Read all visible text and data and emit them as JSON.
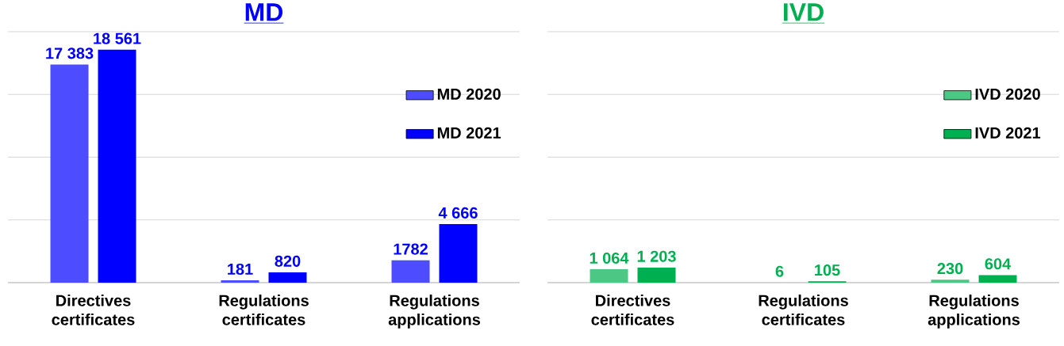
{
  "chart_data": [
    {
      "type": "bar",
      "title": "MD",
      "categories": [
        "Directives certificates",
        "Regulations certificates",
        "Regulations applications"
      ],
      "series": [
        {
          "name": "MD 2020",
          "color": "#4d4dff",
          "values": [
            17383,
            181,
            1782
          ],
          "value_labels": [
            "17 383",
            "181",
            "1782"
          ]
        },
        {
          "name": "MD 2021",
          "color": "#0000ff",
          "values": [
            18561,
            820,
            4666
          ],
          "value_labels": [
            "18 561",
            "820",
            "4 666"
          ]
        }
      ],
      "ylim": [
        0,
        20000
      ],
      "yticks": [
        {
          "value": 0,
          "label": null
        },
        {
          "value": 5000,
          "label": null
        },
        {
          "value": 10000,
          "label": null
        },
        {
          "value": 15000,
          "label": null
        },
        {
          "value": 20000,
          "label": null
        }
      ],
      "grid": "y",
      "legend": "right"
    },
    {
      "type": "bar",
      "title": "IVD",
      "categories": [
        "Directives certificates",
        "Regulations certificates",
        "Regulations applications"
      ],
      "series": [
        {
          "name": "IVD 2020",
          "color": "#4dc884",
          "values": [
            1064,
            6,
            230
          ],
          "value_labels": [
            "1 064",
            "6",
            "230"
          ]
        },
        {
          "name": "IVD 2021",
          "color": "#00b050",
          "values": [
            1203,
            105,
            604
          ],
          "value_labels": [
            "1 203",
            "105",
            "604"
          ]
        }
      ],
      "ylim": [
        0,
        20000
      ],
      "yticks": [
        {
          "value": 0,
          "label": null
        },
        {
          "value": 5000,
          "label": null
        },
        {
          "value": 10000,
          "label": null
        },
        {
          "value": 15000,
          "label": null
        },
        {
          "value": 20000,
          "label": null
        }
      ],
      "grid": "y",
      "legend": "right"
    }
  ]
}
